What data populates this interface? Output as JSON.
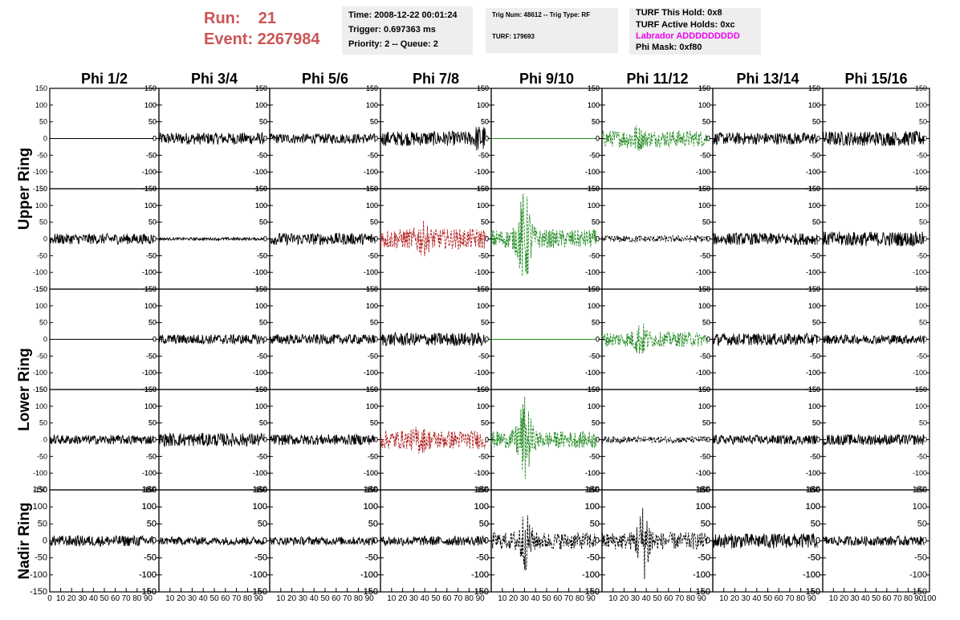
{
  "header": {
    "run_label": "Run:",
    "run_value": "21",
    "event_label": "Event:",
    "event_value": "2267984",
    "time_box": {
      "time": "Time: 2008-12-22 00:01:24",
      "trigger": "Trigger: 0.697363 ms",
      "priority": "Priority: 2 -- Queue: 2"
    },
    "trig_box": {
      "trig": "Trig Num: 48612 -- Trig Type: RF",
      "turf": "TURF: 179693"
    },
    "turf_box": {
      "hold": "TURF This Hold: 0x8",
      "active": "TURF Active Holds: 0xc",
      "labrador": "Labrador ADDDDDDDDD",
      "phimask": "Phi Mask: 0xf80"
    }
  },
  "chart_data": {
    "type": "line",
    "column_titles": [
      "Phi 1/2",
      "Phi 3/4",
      "Phi 5/6",
      "Phi 7/8",
      "Phi 9/10",
      "Phi 11/12",
      "Phi 13/14",
      "Phi 15/16"
    ],
    "ring_labels": [
      "Upper Ring",
      "Lower Ring",
      "Nadir Ring"
    ],
    "ylim": [
      -150,
      150
    ],
    "yticks": [
      -150,
      -100,
      -50,
      0,
      50,
      100,
      150
    ],
    "xlim": [
      0,
      100
    ],
    "xticks": [
      0,
      10,
      20,
      30,
      40,
      50,
      60,
      70,
      80,
      90,
      100
    ],
    "colors": {
      "normal": "#000000",
      "red": "#b22222",
      "green": "#228b22",
      "frame": "#000000"
    },
    "rows": [
      [
        {
          "style": "flat",
          "color": "normal",
          "amplitude": 0
        },
        {
          "style": "noise",
          "color": "normal",
          "amplitude": 18
        },
        {
          "style": "noise",
          "color": "normal",
          "amplitude": 15
        },
        {
          "style": "noise",
          "color": "normal",
          "amplitude": 22,
          "tail": 40
        },
        {
          "style": "flat",
          "color": "green",
          "amplitude": 0
        },
        {
          "style": "pulse",
          "color": "green",
          "amplitude": 25,
          "peak": 45,
          "center": 30,
          "dashed": true
        },
        {
          "style": "noise",
          "color": "normal",
          "amplitude": 18
        },
        {
          "style": "noise",
          "color": "normal",
          "amplitude": 22
        }
      ],
      [
        {
          "style": "noise",
          "color": "normal",
          "amplitude": 16
        },
        {
          "style": "noise",
          "color": "normal",
          "amplitude": 4
        },
        {
          "style": "noise",
          "color": "normal",
          "amplitude": 18
        },
        {
          "style": "pulse",
          "color": "red",
          "amplitude": 30,
          "peak": 55,
          "center": 38,
          "dashed": true
        },
        {
          "style": "pulse",
          "color": "green",
          "amplitude": 28,
          "peak": 150,
          "center": 30,
          "dashed": true
        },
        {
          "style": "noise",
          "color": "normal",
          "amplitude": 10,
          "dashed": true
        },
        {
          "style": "noise",
          "color": "normal",
          "amplitude": 18
        },
        {
          "style": "noise",
          "color": "normal",
          "amplitude": 22
        }
      ],
      [
        {
          "style": "flat",
          "color": "normal",
          "amplitude": 0
        },
        {
          "style": "noise",
          "color": "normal",
          "amplitude": 15
        },
        {
          "style": "noise",
          "color": "normal",
          "amplitude": 15
        },
        {
          "style": "noise",
          "color": "normal",
          "amplitude": 20
        },
        {
          "style": "flat",
          "color": "green",
          "amplitude": 0
        },
        {
          "style": "pulse",
          "color": "green",
          "amplitude": 22,
          "peak": 55,
          "center": 35,
          "dashed": true
        },
        {
          "style": "noise",
          "color": "normal",
          "amplitude": 18
        },
        {
          "style": "noise",
          "color": "normal",
          "amplitude": 14
        }
      ],
      [
        {
          "style": "noise",
          "color": "normal",
          "amplitude": 14
        },
        {
          "style": "noise",
          "color": "normal",
          "amplitude": 20
        },
        {
          "style": "noise",
          "color": "normal",
          "amplitude": 16
        },
        {
          "style": "pulse",
          "color": "red",
          "amplitude": 28,
          "peak": 45,
          "center": 35,
          "dashed": true
        },
        {
          "style": "pulse",
          "color": "green",
          "amplitude": 25,
          "peak": 130,
          "center": 30,
          "dashed": true
        },
        {
          "style": "noise",
          "color": "normal",
          "amplitude": 10,
          "dashed": true
        },
        {
          "style": "noise",
          "color": "normal",
          "amplitude": 14
        },
        {
          "style": "noise",
          "color": "normal",
          "amplitude": 16
        }
      ],
      [
        {
          "style": "noise",
          "color": "normal",
          "amplitude": 16
        },
        {
          "style": "noise",
          "color": "normal",
          "amplitude": 12
        },
        {
          "style": "noise",
          "color": "normal",
          "amplitude": 12
        },
        {
          "style": "noise",
          "color": "normal",
          "amplitude": 14
        },
        {
          "style": "pulse",
          "color": "normal",
          "amplitude": 25,
          "peak": 90,
          "center": 30,
          "dashed": true
        },
        {
          "style": "pulse",
          "color": "normal",
          "amplitude": 25,
          "peak": 115,
          "center": 38,
          "dashed": true
        },
        {
          "style": "noise",
          "color": "normal",
          "amplitude": 22
        },
        {
          "style": "noise",
          "color": "normal",
          "amplitude": 14
        }
      ]
    ]
  }
}
